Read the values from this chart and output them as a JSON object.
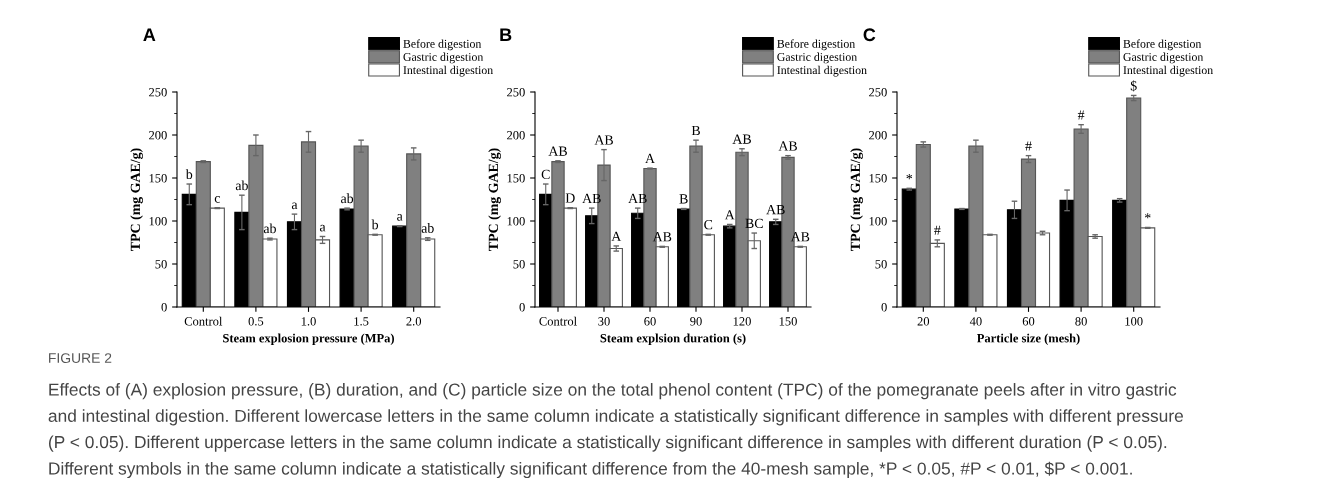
{
  "chart_data": [
    {
      "type": "bar",
      "title": "A",
      "xlabel": "Steam explosion pressure (MPa)",
      "ylabel": "TPC (mg GAE/g)",
      "categories": [
        "Control",
        "0.5",
        "1.0",
        "1.5",
        "2.0"
      ],
      "series": [
        {
          "name": "Before digestion",
          "color": "#000000",
          "values": [
            131,
            110,
            99,
            114,
            94
          ],
          "errors": [
            12,
            20,
            9,
            1,
            0.5
          ],
          "value_labels": [
            "b",
            "ab",
            "a",
            "ab",
            "a"
          ]
        },
        {
          "name": "Gastric digestion",
          "color": "#808080",
          "values": [
            169,
            188,
            192,
            187,
            178
          ],
          "errors": [
            1,
            12,
            12,
            7,
            7
          ]
        },
        {
          "name": "Intestinal digestion",
          "color": "#ffffff",
          "values": [
            115,
            79,
            78,
            84,
            79
          ],
          "errors": [
            0.5,
            1,
            4,
            0.5,
            1.5
          ],
          "value_labels": [
            "c",
            "ab",
            "a",
            "b",
            "ab"
          ]
        }
      ],
      "ylim": [
        0,
        250
      ],
      "yticks": [
        0,
        50,
        100,
        150,
        200,
        250
      ],
      "legend": "top right",
      "annotations": [
        "FIGURE 2",
        "Effects of (A) explosion pressure, (B) duration, and (C) particle size on the total phenol content (TPC) of the pomegranate peels after in vitro gastric",
        "and intestinal digestion. Different lowercase letters in the same column indicate a statistically significant difference in samples with different pressure",
        "(P < 0.05). Different uppercase letters in the same column indicate a statistically significant difference in samples with different duration (P < 0.05).",
        "Different symbols in the same column indicate a statistically significant difference from the 40-mesh sample, *P < 0.05, #P < 0.01, $P < 0.001."
      ]
    },
    {
      "type": "bar",
      "title": "B",
      "xlabel": "Steam explsion duration (s)",
      "ylabel": "TPC (mg GAE/g)",
      "categories": [
        "Control",
        "30",
        "60",
        "90",
        "120",
        "150"
      ],
      "series": [
        {
          "name": "Before digestion",
          "color": "#000000",
          "values": [
            131,
            106,
            109,
            114,
            94,
            99
          ],
          "errors": [
            12,
            9,
            6,
            0.5,
            2,
            3
          ],
          "value_labels": [
            "C",
            "AB",
            "AB",
            "B",
            "A",
            "AB"
          ]
        },
        {
          "name": "Gastric digestion",
          "color": "#808080",
          "values": [
            169,
            165,
            161,
            187,
            180,
            174
          ],
          "errors": [
            1,
            18,
            0.5,
            7,
            4,
            2
          ],
          "value_labels": [
            "AB",
            "AB",
            "A",
            "B",
            "AB",
            "AB"
          ]
        },
        {
          "name": "Intestinal digestion",
          "color": "#ffffff",
          "values": [
            115,
            68,
            70,
            84,
            77,
            70
          ],
          "errors": [
            0.5,
            3,
            0.5,
            0.5,
            9,
            0.5
          ],
          "value_labels": [
            "D",
            "A",
            "AB",
            "C",
            "BC",
            "AB"
          ]
        }
      ],
      "ylim": [
        0,
        250
      ],
      "yticks": [
        0,
        50,
        100,
        150,
        200,
        250
      ],
      "legend": "top right"
    },
    {
      "type": "bar",
      "title": "C",
      "xlabel": "Particle size (mesh)",
      "ylabel": "TPC (mg GAE/g)",
      "categories": [
        "20",
        "40",
        "60",
        "80",
        "100"
      ],
      "series": [
        {
          "name": "Before digestion",
          "color": "#000000",
          "values": [
            137,
            114,
            113,
            124,
            124
          ],
          "errors": [
            1,
            0.5,
            10,
            12,
            2
          ],
          "value_labels": [
            "*",
            null,
            null,
            null,
            null
          ]
        },
        {
          "name": "Gastric digestion",
          "color": "#808080",
          "values": [
            189,
            187,
            172,
            207,
            243
          ],
          "errors": [
            3,
            7,
            4,
            5,
            3
          ],
          "value_labels": [
            null,
            null,
            "#",
            "#",
            "$"
          ]
        },
        {
          "name": "Intestinal digestion",
          "color": "#ffffff",
          "values": [
            74,
            84,
            86,
            82,
            92
          ],
          "errors": [
            4,
            0.5,
            2,
            2,
            0.5
          ],
          "value_labels": [
            "#",
            null,
            null,
            null,
            "*"
          ]
        }
      ],
      "ylim": [
        0,
        250
      ],
      "yticks": [
        0,
        50,
        100,
        150,
        200,
        250
      ],
      "legend": "top right"
    }
  ]
}
